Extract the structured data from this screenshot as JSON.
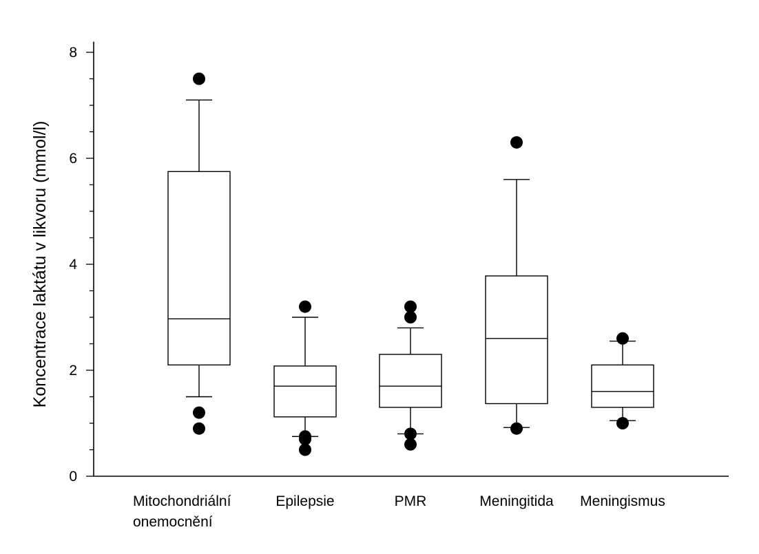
{
  "chart_data": {
    "type": "box",
    "title": "",
    "xlabel": "",
    "ylabel": "Koncentrace laktátu v likvoru (mmol/l)",
    "ylim": [
      0,
      8.2
    ],
    "yticks": [
      0,
      2,
      4,
      6,
      8
    ],
    "minor_step": 0.5,
    "grid": false,
    "legend": "none",
    "colors": {
      "axis": "#000000",
      "box_fill": "#ffffff",
      "box_stroke": "#000000",
      "outlier": "#000000"
    },
    "categories": [
      [
        "Mitochondriální",
        "onemocnění"
      ],
      [
        "Epilepsie"
      ],
      [
        "PMR"
      ],
      [
        "Meningitida"
      ],
      [
        "Meningismus"
      ]
    ],
    "boxes": [
      {
        "whisker_low": 1.5,
        "q1": 2.1,
        "median": 2.97,
        "q3": 5.75,
        "whisker_high": 7.1,
        "outliers": [
          7.5,
          1.2,
          0.9
        ]
      },
      {
        "whisker_low": 0.75,
        "q1": 1.12,
        "median": 1.7,
        "q3": 2.08,
        "whisker_high": 3.0,
        "outliers": [
          3.2,
          0.75,
          0.7,
          0.5
        ]
      },
      {
        "whisker_low": 0.8,
        "q1": 1.3,
        "median": 1.7,
        "q3": 2.3,
        "whisker_high": 2.8,
        "outliers": [
          3.2,
          3.0,
          0.8,
          0.6
        ]
      },
      {
        "whisker_low": 0.92,
        "q1": 1.37,
        "median": 2.6,
        "q3": 3.78,
        "whisker_high": 5.6,
        "outliers": [
          6.3,
          0.9
        ]
      },
      {
        "whisker_low": 1.05,
        "q1": 1.3,
        "median": 1.6,
        "q3": 2.1,
        "whisker_high": 2.55,
        "outliers": [
          2.6,
          1.0
        ]
      }
    ]
  }
}
